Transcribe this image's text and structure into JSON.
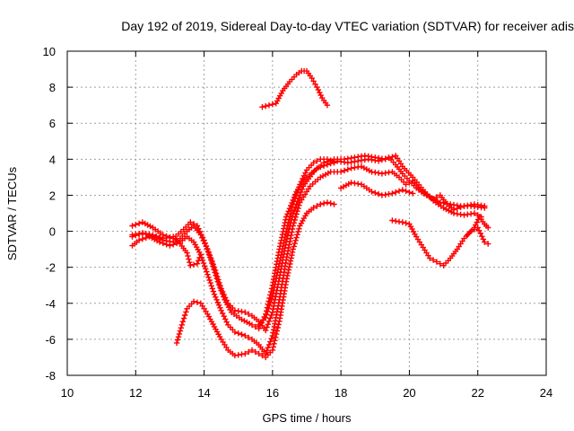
{
  "chart_data": {
    "type": "scatter",
    "title": "Day 192 of 2019, Sidereal Day-to-day VTEC variation (SDTVAR) for receiver adis",
    "xlabel": "GPS time / hours",
    "ylabel": "SDTVAR / TECUs",
    "xlim": [
      10,
      24
    ],
    "ylim": [
      -8,
      10
    ],
    "xticks": [
      10,
      12,
      14,
      16,
      18,
      20,
      22,
      24
    ],
    "yticks": [
      -8,
      -6,
      -4,
      -2,
      0,
      2,
      4,
      6,
      8,
      10
    ],
    "grid": true,
    "marker": "+",
    "color": "#ff0000",
    "series": [
      {
        "name": "trace-1",
        "points": [
          [
            11.9,
            0.3
          ],
          [
            12.2,
            0.5
          ],
          [
            12.5,
            0.2
          ],
          [
            12.8,
            -0.2
          ],
          [
            13.1,
            -0.4
          ],
          [
            13.4,
            0.1
          ],
          [
            13.6,
            0.5
          ],
          [
            13.8,
            0.3
          ],
          [
            14.0,
            -0.5
          ],
          [
            14.2,
            -1.6
          ],
          [
            14.4,
            -2.8
          ],
          [
            14.6,
            -3.8
          ],
          [
            14.8,
            -4.5
          ],
          [
            15.1,
            -4.9
          ],
          [
            15.4,
            -5.2
          ],
          [
            15.6,
            -5.4
          ],
          [
            15.8,
            -4.6
          ],
          [
            16.0,
            -3.0
          ],
          [
            16.2,
            -1.0
          ],
          [
            16.4,
            0.8
          ],
          [
            16.7,
            2.2
          ],
          [
            17.0,
            3.0
          ],
          [
            17.3,
            3.5
          ],
          [
            17.6,
            3.7
          ],
          [
            17.9,
            3.9
          ],
          [
            18.2,
            3.8
          ],
          [
            18.5,
            3.9
          ],
          [
            18.8,
            4.0
          ],
          [
            19.1,
            3.9
          ],
          [
            19.4,
            4.1
          ],
          [
            19.6,
            3.7
          ],
          [
            19.8,
            3.2
          ],
          [
            20.0,
            2.8
          ],
          [
            20.2,
            2.4
          ],
          [
            20.5,
            2.0
          ],
          [
            20.7,
            1.8
          ],
          [
            20.9,
            2.0
          ],
          [
            21.1,
            1.5
          ],
          [
            21.3,
            1.2
          ],
          [
            21.6,
            1.4
          ],
          [
            21.9,
            1.5
          ],
          [
            22.2,
            1.4
          ]
        ]
      },
      {
        "name": "trace-2",
        "points": [
          [
            11.9,
            -0.3
          ],
          [
            12.2,
            -0.1
          ],
          [
            12.5,
            -0.3
          ],
          [
            12.8,
            -0.5
          ],
          [
            13.1,
            -0.6
          ],
          [
            13.3,
            -0.4
          ],
          [
            13.5,
            0.0
          ],
          [
            13.7,
            0.3
          ],
          [
            13.9,
            -0.2
          ],
          [
            14.1,
            -1.0
          ],
          [
            14.3,
            -2.0
          ],
          [
            14.5,
            -3.2
          ],
          [
            14.7,
            -4.0
          ],
          [
            14.9,
            -4.4
          ],
          [
            15.2,
            -4.5
          ],
          [
            15.4,
            -4.7
          ],
          [
            15.6,
            -5.0
          ],
          [
            15.8,
            -5.5
          ],
          [
            16.0,
            -4.5
          ],
          [
            16.2,
            -2.6
          ],
          [
            16.4,
            -0.6
          ],
          [
            16.6,
            1.0
          ],
          [
            16.9,
            2.5
          ],
          [
            17.2,
            3.3
          ],
          [
            17.5,
            3.8
          ],
          [
            17.8,
            4.0
          ],
          [
            18.1,
            4.0
          ],
          [
            18.4,
            4.1
          ],
          [
            18.7,
            4.2
          ],
          [
            19.0,
            4.1
          ],
          [
            19.3,
            4.0
          ],
          [
            19.6,
            4.2
          ],
          [
            19.8,
            3.6
          ],
          [
            20.1,
            3.0
          ],
          [
            20.4,
            2.3
          ],
          [
            20.7,
            1.7
          ],
          [
            21.0,
            1.3
          ],
          [
            21.3,
            1.0
          ],
          [
            21.6,
            0.9
          ],
          [
            21.9,
            1.0
          ],
          [
            22.1,
            0.8
          ]
        ]
      },
      {
        "name": "trace-3",
        "points": [
          [
            11.9,
            -0.8
          ],
          [
            12.1,
            -0.5
          ],
          [
            12.4,
            -0.3
          ],
          [
            12.7,
            -0.6
          ],
          [
            13.0,
            -0.8
          ],
          [
            13.3,
            -0.6
          ],
          [
            13.5,
            -0.3
          ],
          [
            13.7,
            -0.6
          ],
          [
            13.9,
            -1.3
          ],
          [
            14.1,
            -2.4
          ],
          [
            14.3,
            -3.5
          ],
          [
            14.5,
            -4.4
          ],
          [
            14.7,
            -5.2
          ],
          [
            14.9,
            -5.6
          ],
          [
            15.2,
            -5.8
          ],
          [
            15.4,
            -6.0
          ],
          [
            15.6,
            -6.3
          ],
          [
            15.8,
            -6.8
          ],
          [
            16.0,
            -5.8
          ],
          [
            16.2,
            -3.8
          ],
          [
            16.4,
            -1.6
          ],
          [
            16.6,
            0.3
          ],
          [
            16.8,
            1.6
          ],
          [
            17.1,
            2.5
          ],
          [
            17.4,
            3.0
          ],
          [
            17.7,
            3.3
          ],
          [
            18.0,
            3.3
          ],
          [
            18.3,
            3.5
          ],
          [
            18.6,
            3.6
          ],
          [
            18.9,
            3.3
          ],
          [
            19.2,
            3.2
          ],
          [
            19.5,
            3.3
          ],
          [
            19.7,
            3.0
          ],
          [
            19.9,
            2.6
          ],
          [
            20.1,
            2.8
          ],
          [
            20.3,
            2.3
          ],
          [
            20.6,
            1.9
          ],
          [
            20.9,
            1.6
          ],
          [
            21.2,
            1.5
          ],
          [
            21.5,
            1.4
          ],
          [
            21.8,
            1.4
          ],
          [
            22.2,
            1.3
          ]
        ]
      },
      {
        "name": "trace-4",
        "points": [
          [
            13.2,
            -6.2
          ],
          [
            13.35,
            -5.2
          ],
          [
            13.5,
            -4.3
          ],
          [
            13.7,
            -3.9
          ],
          [
            13.9,
            -4.0
          ],
          [
            14.1,
            -4.6
          ],
          [
            14.3,
            -5.3
          ],
          [
            14.5,
            -6.0
          ],
          [
            14.7,
            -6.6
          ],
          [
            14.9,
            -6.9
          ],
          [
            15.2,
            -6.8
          ],
          [
            15.4,
            -6.6
          ],
          [
            15.6,
            -6.8
          ],
          [
            15.8,
            -7.0
          ],
          [
            16.0,
            -6.6
          ],
          [
            16.2,
            -5.0
          ],
          [
            16.4,
            -2.8
          ],
          [
            16.6,
            -1.0
          ],
          [
            16.8,
            0.3
          ],
          [
            17.0,
            1.0
          ],
          [
            17.2,
            1.3
          ],
          [
            17.4,
            1.5
          ],
          [
            17.6,
            1.6
          ],
          [
            17.8,
            1.5
          ]
        ]
      },
      {
        "name": "trace-5",
        "points": [
          [
            11.9,
            -0.2
          ],
          [
            12.2,
            -0.1
          ],
          [
            12.5,
            -0.2
          ],
          [
            12.8,
            -0.4
          ],
          [
            13.1,
            -0.3
          ],
          [
            13.3,
            -0.7
          ],
          [
            13.5,
            -1.2
          ],
          [
            13.6,
            -1.9
          ],
          [
            13.8,
            -1.8
          ],
          [
            13.9,
            -1.3
          ]
        ]
      },
      {
        "name": "trace-6",
        "points": [
          [
            15.6,
            -5.2
          ],
          [
            15.8,
            -4.8
          ],
          [
            16.0,
            -3.6
          ],
          [
            16.2,
            -1.8
          ],
          [
            16.4,
            0.0
          ],
          [
            16.6,
            1.5
          ],
          [
            16.8,
            2.6
          ],
          [
            17.0,
            3.4
          ],
          [
            17.2,
            3.8
          ],
          [
            17.4,
            4.0
          ],
          [
            17.6,
            4.0
          ],
          [
            17.8,
            3.8
          ]
        ]
      },
      {
        "name": "trace-7",
        "points": [
          [
            18.0,
            2.4
          ],
          [
            18.3,
            2.7
          ],
          [
            18.6,
            2.6
          ],
          [
            18.9,
            2.2
          ],
          [
            19.2,
            2.0
          ],
          [
            19.5,
            2.1
          ],
          [
            19.8,
            2.3
          ],
          [
            20.1,
            2.1
          ]
        ]
      },
      {
        "name": "trace-8",
        "points": [
          [
            19.5,
            0.6
          ],
          [
            19.8,
            0.5
          ],
          [
            20.0,
            0.4
          ],
          [
            20.2,
            -0.3
          ],
          [
            20.4,
            -0.9
          ],
          [
            20.6,
            -1.5
          ],
          [
            20.8,
            -1.7
          ],
          [
            21.0,
            -1.9
          ],
          [
            21.2,
            -1.5
          ],
          [
            21.4,
            -1.0
          ],
          [
            21.6,
            -0.4
          ],
          [
            21.8,
            0.0
          ],
          [
            22.0,
            0.2
          ],
          [
            22.2,
            -0.6
          ],
          [
            22.3,
            -0.7
          ]
        ]
      },
      {
        "name": "trace-9",
        "points": [
          [
            21.7,
            -0.2
          ],
          [
            21.9,
            0.2
          ],
          [
            22.05,
            0.8
          ],
          [
            22.2,
            0.4
          ],
          [
            22.3,
            0.2
          ]
        ]
      },
      {
        "name": "trace-10",
        "points": [
          [
            15.7,
            6.9
          ],
          [
            15.9,
            7.0
          ],
          [
            16.1,
            7.1
          ],
          [
            16.3,
            7.8
          ],
          [
            16.5,
            8.3
          ],
          [
            16.7,
            8.7
          ],
          [
            16.85,
            8.9
          ],
          [
            17.0,
            8.9
          ],
          [
            17.15,
            8.5
          ],
          [
            17.3,
            8.0
          ],
          [
            17.45,
            7.4
          ],
          [
            17.6,
            7.0
          ]
        ]
      }
    ]
  }
}
